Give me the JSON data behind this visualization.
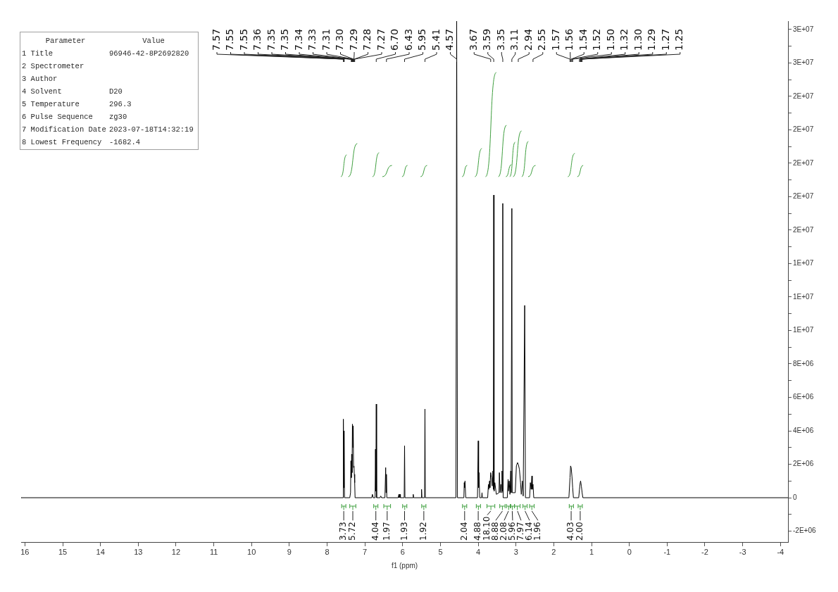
{
  "chart_data": {
    "type": "line",
    "xlabel": "f1 (ppm)",
    "xlim": [
      16.1,
      -4.2
    ],
    "xticks": [
      16,
      15,
      14,
      13,
      12,
      11,
      10,
      9,
      8,
      7,
      6,
      5,
      4,
      3,
      2,
      1,
      0,
      -1,
      -2,
      -3,
      -4
    ],
    "ylim": [
      -2650000,
      28500000
    ],
    "yticks": [
      {
        "value": -2000000,
        "label": "-2E+06"
      },
      {
        "value": -1000000,
        "label": null
      },
      0,
      {
        "value": 1000000,
        "label": null
      },
      {
        "value": 2000000,
        "label": "2E+06"
      },
      {
        "value": 3000000,
        "label": null
      },
      {
        "value": 4000000,
        "label": "4E+06"
      },
      {
        "value": 5000000,
        "label": null
      },
      {
        "value": 6000000,
        "label": "6E+06"
      },
      {
        "value": 7000000,
        "label": null
      },
      {
        "value": 8000000,
        "label": "8E+06"
      },
      {
        "value": 9000000,
        "label": null
      },
      {
        "value": 10000000,
        "label": "1E+07"
      },
      {
        "value": 11000000,
        "label": null
      },
      {
        "value": 12000000,
        "label": "1E+07"
      },
      {
        "value": 13000000,
        "label": null
      },
      {
        "value": 14000000,
        "label": "1E+07"
      },
      {
        "value": 15000000,
        "label": null
      },
      {
        "value": 16000000,
        "label": "2E+07"
      },
      {
        "value": 17000000,
        "label": null
      },
      {
        "value": 18000000,
        "label": "2E+07"
      },
      {
        "value": 19000000,
        "label": null
      },
      {
        "value": 20000000,
        "label": "2E+07"
      },
      {
        "value": 21000000,
        "label": null
      },
      {
        "value": 22000000,
        "label": "2E+07"
      },
      {
        "value": 23000000,
        "label": null
      },
      {
        "value": 24000000,
        "label": "2E+07"
      },
      {
        "value": 25000000,
        "label": null
      },
      {
        "value": 26000000,
        "label": "3E+07"
      },
      {
        "value": 27000000,
        "label": null
      },
      {
        "value": 28000000,
        "label": "3E+07"
      }
    ],
    "grid": false,
    "legend": false,
    "marker": "none",
    "line_style": "solid",
    "series": [
      {
        "color": "#000000",
        "x": [
          16.1,
          7.6,
          7.58,
          7.57,
          7.56,
          7.55,
          7.54,
          7.4,
          7.38,
          7.37,
          7.36,
          7.35,
          7.34,
          7.33,
          7.32,
          7.31,
          7.3,
          7.29,
          7.28,
          7.27,
          7.26,
          6.82,
          6.8,
          6.78,
          6.73,
          6.72,
          6.71,
          6.7,
          6.69,
          6.6,
          6.58,
          6.56,
          6.47,
          6.45,
          6.44,
          6.43,
          6.42,
          6.12,
          6.1,
          6.09,
          6.07,
          6.06,
          5.96,
          5.95,
          5.94,
          5.73,
          5.72,
          5.71,
          5.51,
          5.5,
          5.49,
          5.42,
          5.41,
          5.4,
          4.59,
          4.57,
          4.55,
          4.38,
          4.37,
          4.36,
          4.35,
          4.33,
          4.02,
          4,
          3.99,
          3.98,
          3.96,
          3.91,
          3.9,
          3.89,
          3.75,
          3.73,
          3.72,
          3.7,
          3.69,
          3.67,
          3.65,
          3.63,
          3.61,
          3.6,
          3.59,
          3.58,
          3.56,
          3.52,
          3.45,
          3.44,
          3.42,
          3.4,
          3.38,
          3.37,
          3.36,
          3.35,
          3.34,
          3.23,
          3.21,
          3.2,
          3.18,
          3.16,
          3.14,
          3.13,
          3.11,
          3.1,
          3.02,
          2.99,
          2.96,
          2.94,
          2.91,
          2.88,
          2.86,
          2.83,
          2.81,
          2.77,
          2.75,
          2.64,
          2.62,
          2.6,
          2.58,
          2.57,
          2.55,
          2.53,
          1.6,
          1.57,
          1.555,
          1.54,
          1.52,
          1.5,
          1.48,
          1.34,
          1.32,
          1.3,
          1.29,
          1.27,
          1.25,
          1.23,
          -4.2
        ],
        "values": [
          0,
          0,
          0,
          4700000,
          600000,
          4000000,
          0,
          0,
          300000,
          2200000,
          1200000,
          2600000,
          1500000,
          4400000,
          3000000,
          4300000,
          1800000,
          1900000,
          1400000,
          900000,
          0,
          0,
          200000,
          0,
          0,
          2900000,
          400000,
          5600000,
          0,
          0,
          100000,
          0,
          0,
          1800000,
          300000,
          1400000,
          0,
          0,
          200000,
          0,
          200000,
          0,
          0,
          3100000,
          0,
          0,
          200000,
          0,
          0,
          500000,
          0,
          0,
          5300000,
          0,
          0,
          28500000,
          0,
          0,
          900000,
          600000,
          1000000,
          0,
          0,
          3400000,
          600000,
          1500000,
          0,
          0,
          300000,
          0,
          0,
          800000,
          500000,
          1000000,
          600000,
          1500000,
          1200000,
          700000,
          1600000,
          500000,
          18100000,
          400000,
          900000,
          200000,
          300000,
          1500000,
          300000,
          800000,
          300000,
          1600000,
          400000,
          17600000,
          0,
          0,
          1100000,
          400000,
          1000000,
          200000,
          1600000,
          300000,
          17300000,
          300000,
          300000,
          1900000,
          2100000,
          2000000,
          1700000,
          900000,
          200000,
          1000000,
          100000,
          11500000,
          0,
          0,
          900000,
          500000,
          1300000,
          500000,
          800000,
          0,
          0,
          1200000,
          1900000,
          1800000,
          1300000,
          600000,
          0,
          0,
          500000,
          900000,
          1000000,
          700000,
          300000,
          0,
          0
        ]
      }
    ],
    "annotations": [
      "Parameter\tValue",
      "1 Title\t96946-42-8P2692820",
      "2 Spectrometer",
      "3 Author",
      "4 Solvent\tD20",
      "5 Temperature\t296.3",
      "6 Pulse Sequence\tzg30",
      "7 Modification Date\t2023-07-18T14:32:19",
      "8 Lowest Frequency\t-1682.4",
      {
        "text": "7.57",
        "x": 7.57
      },
      {
        "text": "7.55",
        "x": 7.55
      },
      {
        "text": "7.55",
        "x": 7.55
      },
      {
        "text": "7.36",
        "x": 7.36
      },
      {
        "text": "7.35",
        "x": 7.35
      },
      {
        "text": "7.35",
        "x": 7.35
      },
      {
        "text": "7.34",
        "x": 7.34
      },
      {
        "text": "7.33",
        "x": 7.33
      },
      {
        "text": "7.31",
        "x": 7.31
      },
      {
        "text": "7.30",
        "x": 7.3
      },
      {
        "text": "7.29",
        "x": 7.29
      },
      {
        "text": "7.28",
        "x": 7.28
      },
      {
        "text": "7.27",
        "x": 7.27
      },
      {
        "text": "6.70",
        "x": 6.7
      },
      {
        "text": "6.43",
        "x": 6.43
      },
      {
        "text": "5.95",
        "x": 5.95
      },
      {
        "text": "5.41",
        "x": 5.41
      },
      {
        "text": "4.57",
        "x": 4.57
      },
      {
        "text": "3.67",
        "x": 3.67
      },
      {
        "text": "3.59",
        "x": 3.59
      },
      {
        "text": "3.35",
        "x": 3.35
      },
      {
        "text": "3.11",
        "x": 3.11
      },
      {
        "text": "2.94",
        "x": 2.94
      },
      {
        "text": "2.55",
        "x": 2.55
      },
      {
        "text": "1.57",
        "x": 1.57
      },
      {
        "text": "1.56",
        "x": 1.56
      },
      {
        "text": "1.54",
        "x": 1.54
      },
      {
        "text": "1.52",
        "x": 1.52
      },
      {
        "text": "1.50",
        "x": 1.5
      },
      {
        "text": "1.32",
        "x": 1.32
      },
      {
        "text": "1.30",
        "x": 1.3
      },
      {
        "text": "1.29",
        "x": 1.29
      },
      {
        "text": "1.27",
        "x": 1.27
      },
      {
        "text": "1.25",
        "x": 1.25
      },
      {
        "text": "3.73",
        "x": 7.56
      },
      {
        "text": "5.72",
        "x": 7.32
      },
      {
        "text": "4.04",
        "x": 6.71
      },
      {
        "text": "1.97",
        "x": 6.41
      },
      {
        "text": "1.93",
        "x": 5.95
      },
      {
        "text": "1.92",
        "x": 5.44
      },
      {
        "text": "2.04",
        "x": 4.36
      },
      {
        "text": "4.88",
        "x": 4.0
      },
      {
        "text": "18.10",
        "x": 3.67
      },
      {
        "text": "8.88",
        "x": 3.36
      },
      {
        "text": "2.08",
        "x": 3.2
      },
      {
        "text": "5.96",
        "x": 3.1
      },
      {
        "text": "7.97",
        "x": 2.96
      },
      {
        "text": "6.14",
        "x": 2.76
      },
      {
        "text": "1.96",
        "x": 2.58
      },
      {
        "text": "4.03",
        "x": 1.54
      },
      {
        "text": "2.00",
        "x": 1.3
      }
    ]
  }
}
